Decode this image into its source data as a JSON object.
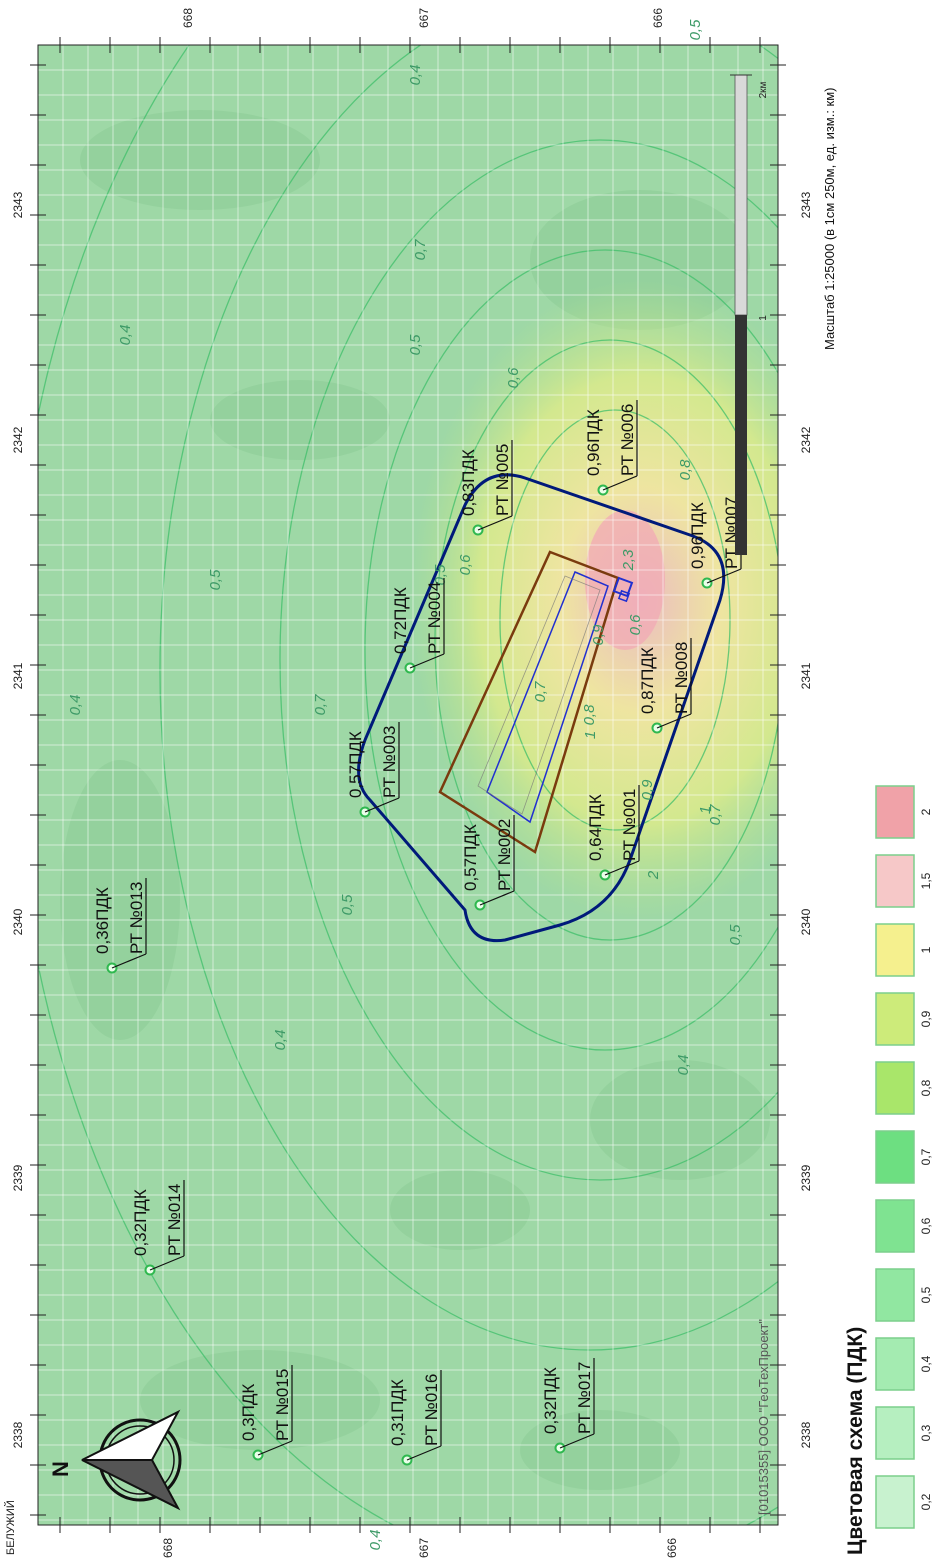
{
  "corner_label": "БЕЛУЖИЙ",
  "axis": {
    "top_ticks": [
      "668",
      "667",
      "666"
    ],
    "left_ticks": [
      "2338",
      "2339",
      "2340",
      "2341",
      "2342",
      "2343"
    ],
    "right_ticks": [
      "2338",
      "2339",
      "2340",
      "2341",
      "2342",
      "2343"
    ],
    "bottom_ticks": [
      "668",
      "667",
      "666"
    ]
  },
  "scale": {
    "caption": "Масштаб 1:25000 (в 1см 250м, ед. изм.: км)",
    "marks": [
      "1",
      "2км"
    ]
  },
  "copyright": "[01015355] ООО \"ГеоТехПроект\"",
  "north_label": "N",
  "isolines": [
    "0,4",
    "0,5",
    "0,4",
    "0,5",
    "0,6",
    "0,7",
    "0,8",
    "0,9",
    "1",
    "0,7",
    "0,8",
    "0,9",
    "1",
    "2",
    "2,3",
    "0,6",
    "0,7",
    "0,5",
    "0,4",
    "0,5",
    "0,4",
    "0,4",
    "0,4",
    "0,5",
    "0,5",
    "0,6",
    "0,7"
  ],
  "points": [
    {
      "id": "РТ №001",
      "value": "0,64ПДК"
    },
    {
      "id": "РТ №002",
      "value": "0,57ПДК"
    },
    {
      "id": "РТ №003",
      "value": "0,57ПДК"
    },
    {
      "id": "РТ №004",
      "value": "0,72ПДК"
    },
    {
      "id": "РТ №005",
      "value": "0,83ПДК"
    },
    {
      "id": "РТ №006",
      "value": "0,96ПДК"
    },
    {
      "id": "РТ №007",
      "value": "0,96ПДК"
    },
    {
      "id": "РТ №008",
      "value": "0,87ПДК"
    },
    {
      "id": "РТ №013",
      "value": "0,36ПДК"
    },
    {
      "id": "РТ №014",
      "value": "0,32ПДК"
    },
    {
      "id": "РТ №015",
      "value": "0,3ПДК"
    },
    {
      "id": "РТ №016",
      "value": "0,31ПДК"
    },
    {
      "id": "РТ №017",
      "value": "0,32ПДК"
    }
  ],
  "legend": {
    "title": "Цветовая схема (ПДК)",
    "items": [
      {
        "label": "0,2",
        "color": "#c8f2cf"
      },
      {
        "label": "0,3",
        "color": "#b6efc0"
      },
      {
        "label": "0,4",
        "color": "#a4ebb1"
      },
      {
        "label": "0,5",
        "color": "#91e7a1"
      },
      {
        "label": "0,6",
        "color": "#7fe391"
      },
      {
        "label": "0,7",
        "color": "#6ddf81"
      },
      {
        "label": "0,8",
        "color": "#a9e66a"
      },
      {
        "label": "0,9",
        "color": "#cdeb7a"
      },
      {
        "label": "1",
        "color": "#f5f08e"
      },
      {
        "label": "1,5",
        "color": "#f6c8c8"
      },
      {
        "label": "2",
        "color": "#f0a2a8"
      }
    ]
  },
  "colors": {
    "map_bg": "#9ed8a6",
    "zone_outline": "#001a7a",
    "site_outline": "#7a3b0e",
    "point_marker": "#2fb84f"
  }
}
